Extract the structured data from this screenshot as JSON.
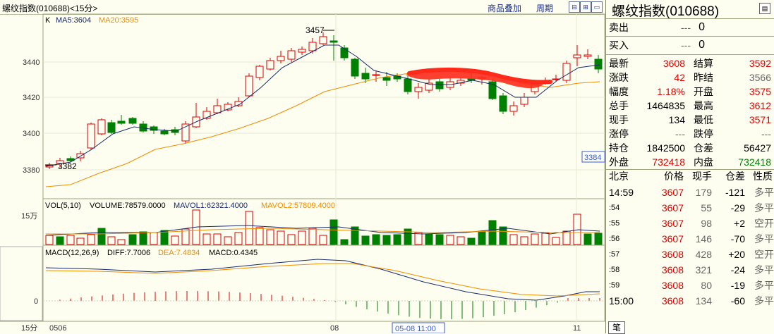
{
  "header": {
    "title": "螺纹指数(010688)<15分>",
    "btn_overlay": "商品叠加",
    "btn_period": "周期"
  },
  "main_chart": {
    "label_k": "K",
    "ma5": "MA5:3604",
    "ma20": "MA20:3595",
    "y_ticks": [
      "3440",
      "3420",
      "3400",
      "3380"
    ],
    "high_label": "3457",
    "low_label": "3382",
    "price_tag": "3384"
  },
  "volume_chart": {
    "title": "VOL(5,10)",
    "volume": "VOLUME:78579.0000",
    "mavol1": "MAVOL1:62321.4000",
    "mavol2": "MAVOL2:57809.4000",
    "y_tick": "15万"
  },
  "macd_chart": {
    "title": "MACD(12,26,9)",
    "diff": "DIFF:7.7006",
    "dea": "DEA:7.4834",
    "macd": "MACD:0.4345",
    "y_tick": "0"
  },
  "x_axis": {
    "period": "15分",
    "labels": [
      "0506",
      "08",
      "11"
    ],
    "cursor": "05-08 11:00"
  },
  "colors": {
    "up": "#e00000",
    "down": "#008000",
    "ma5": "#1a2a6a",
    "ma20": "#f08c00",
    "bg": "#fdfef0"
  },
  "panel": {
    "title": "螺纹指数(010688)",
    "sell_label": "卖出",
    "sell_price": "---",
    "sell_vol": "0",
    "buy_label": "买入",
    "buy_price": "---",
    "buy_vol": "0",
    "quotes": [
      {
        "l1": "最新",
        "v1": "3608",
        "c1": "red",
        "l2": "结算",
        "v2": "3592",
        "c2": "red"
      },
      {
        "l1": "涨跌",
        "v1": "42",
        "c1": "red",
        "l2": "昨结",
        "v2": "3566",
        "c2": "gray"
      },
      {
        "l1": "幅度",
        "v1": "1.18%",
        "c1": "red",
        "l2": "开盘",
        "v2": "3575",
        "c2": "red"
      },
      {
        "l1": "总手",
        "v1": "1464835",
        "c1": "blk",
        "l2": "最高",
        "v2": "3612",
        "c2": "red"
      },
      {
        "l1": "现手",
        "v1": "134",
        "c1": "blk",
        "l2": "最低",
        "v2": "3571",
        "c2": "red"
      },
      {
        "l1": "涨停",
        "v1": "---",
        "c1": "gray",
        "l2": "跌停",
        "v2": "---",
        "c2": "gray"
      },
      {
        "l1": "持仓",
        "v1": "1842500",
        "c1": "blk",
        "l2": "仓差",
        "v2": "56427",
        "c2": "blk"
      },
      {
        "l1": "外盘",
        "v1": "732418",
        "c1": "red",
        "l2": "内盘",
        "v2": "732418",
        "c2": "green"
      }
    ],
    "tick_header": {
      "place": "北京",
      "price": "价格",
      "vol": "现手",
      "oi": "仓差",
      "nature": "性质"
    },
    "ticks": [
      {
        "time": "14:59",
        "price": "3607",
        "vol": "179",
        "oi": "-121",
        "nature": "多平"
      },
      {
        "time": ":54",
        "price": "3607",
        "vol": "55",
        "oi": "-29",
        "nature": "多平"
      },
      {
        "time": ":55",
        "price": "3607",
        "vol": "98",
        "oi": "+2",
        "nature": "空开"
      },
      {
        "time": ":56",
        "price": "3607",
        "vol": "146",
        "oi": "-70",
        "nature": "多平"
      },
      {
        "time": ":57",
        "price": "3608",
        "vol": "428",
        "oi": "+20",
        "nature": "空开"
      },
      {
        "time": ":58",
        "price": "3608",
        "vol": "321",
        "oi": "-24",
        "nature": "多平"
      },
      {
        "time": ":59",
        "price": "3608",
        "vol": "80",
        "oi": "-19",
        "nature": "多平"
      },
      {
        "time": "15:00",
        "price": "3608",
        "vol": "134",
        "oi": "-60",
        "nature": "多平"
      }
    ],
    "tab_label": "笔"
  }
}
